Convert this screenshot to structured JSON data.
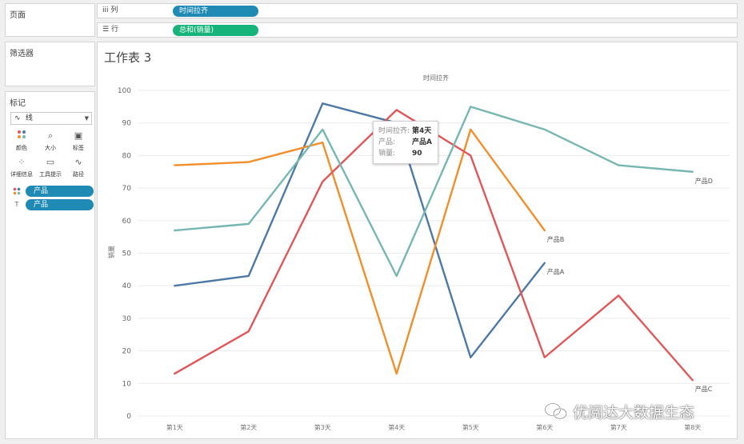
{
  "left_panel": {
    "pages_title": "页面",
    "filters_title": "筛选器",
    "marks_title": "标记",
    "mark_type": "线",
    "mark_buttons": [
      {
        "icon": "color-dots-icon",
        "label": "颜色"
      },
      {
        "icon": "size-icon",
        "label": "大小"
      },
      {
        "icon": "label-icon",
        "label": "标签"
      },
      {
        "icon": "detail-icon",
        "label": "详细信息"
      },
      {
        "icon": "tooltip-icon",
        "label": "工具提示"
      },
      {
        "icon": "path-icon",
        "label": "路径"
      }
    ],
    "mark_pills": [
      {
        "icon": "color-dots-icon",
        "label": "产品"
      },
      {
        "icon": "label-icon",
        "label": "产品"
      }
    ]
  },
  "shelves": {
    "columns_label": "列",
    "columns_pill": "时间拉齐",
    "rows_label": "行",
    "rows_pill": "总和(销量)"
  },
  "sheet": {
    "title": "工作表 3"
  },
  "tooltip": {
    "rows": [
      {
        "key": "时间拉齐:",
        "value": "第4天"
      },
      {
        "key": "产品:",
        "value": "产品A"
      },
      {
        "key": "销量:",
        "value": "90"
      }
    ]
  },
  "watermark": {
    "text": "优阅达大数据生态"
  },
  "chart_data": {
    "type": "line",
    "header": "时间拉齐",
    "xlabel": "",
    "ylabel": "销量",
    "categories": [
      "第1天",
      "第2天",
      "第3天",
      "第4天",
      "第5天",
      "第6天",
      "第7天",
      "第8天"
    ],
    "ylim": [
      0,
      100
    ],
    "yticks": [
      0,
      10,
      20,
      30,
      40,
      50,
      60,
      70,
      80,
      90,
      100
    ],
    "grid": true,
    "series": [
      {
        "name": "产品A",
        "color": "#4e79a7",
        "values": [
          40,
          43,
          96,
          90,
          18,
          47,
          null,
          null
        ]
      },
      {
        "name": "产品B",
        "color": "#f28e2b",
        "values": [
          77,
          78,
          84,
          13,
          88,
          57,
          null,
          null
        ]
      },
      {
        "name": "产品C",
        "color": "#e15759",
        "values": [
          13,
          26,
          72,
          94,
          80,
          18,
          37,
          11
        ]
      },
      {
        "name": "产品D",
        "color": "#76b7b2",
        "values": [
          57,
          59,
          88,
          43,
          95,
          88,
          77,
          75
        ]
      }
    ]
  }
}
